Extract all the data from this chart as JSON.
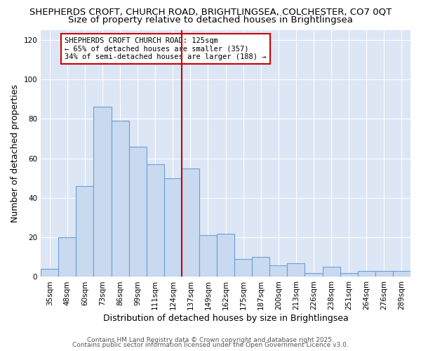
{
  "title_line1": "SHEPHERDS CROFT, CHURCH ROAD, BRIGHTLINGSEA, COLCHESTER, CO7 0QT",
  "title_line2": "Size of property relative to detached houses in Brightlingsea",
  "xlabel": "Distribution of detached houses by size in Brightlingsea",
  "ylabel": "Number of detached properties",
  "categories": [
    "35sqm",
    "48sqm",
    "60sqm",
    "73sqm",
    "86sqm",
    "99sqm",
    "111sqm",
    "124sqm",
    "137sqm",
    "149sqm",
    "162sqm",
    "175sqm",
    "187sqm",
    "200sqm",
    "213sqm",
    "226sqm",
    "238sqm",
    "251sqm",
    "264sqm",
    "276sqm",
    "289sqm"
  ],
  "values": [
    4,
    20,
    46,
    86,
    79,
    66,
    57,
    50,
    55,
    21,
    22,
    9,
    10,
    6,
    7,
    2,
    5,
    2,
    3,
    3,
    3
  ],
  "bar_color": "#c9d9ef",
  "bar_edge_color": "#6a9fd8",
  "vline_x": 7.5,
  "vline_color": "#cc0000",
  "annotation_lines": [
    "SHEPHERDS CROFT CHURCH ROAD: 125sqm",
    "← 65% of detached houses are smaller (357)",
    "34% of semi-detached houses are larger (188) →"
  ],
  "ylim": [
    0,
    125
  ],
  "yticks": [
    0,
    20,
    40,
    60,
    80,
    100,
    120
  ],
  "footer_line1": "Contains HM Land Registry data © Crown copyright and database right 2025.",
  "footer_line2": "Contains public sector information licensed under the Open Government Licence v3.0.",
  "fig_background_color": "#ffffff",
  "axes_background_color": "#dce6f5",
  "grid_color": "#ffffff",
  "title_fontsize": 9.5,
  "subtitle_fontsize": 9.5,
  "axis_label_fontsize": 9,
  "tick_fontsize": 7.5,
  "annotation_fontsize": 7.5,
  "footer_fontsize": 6.5
}
